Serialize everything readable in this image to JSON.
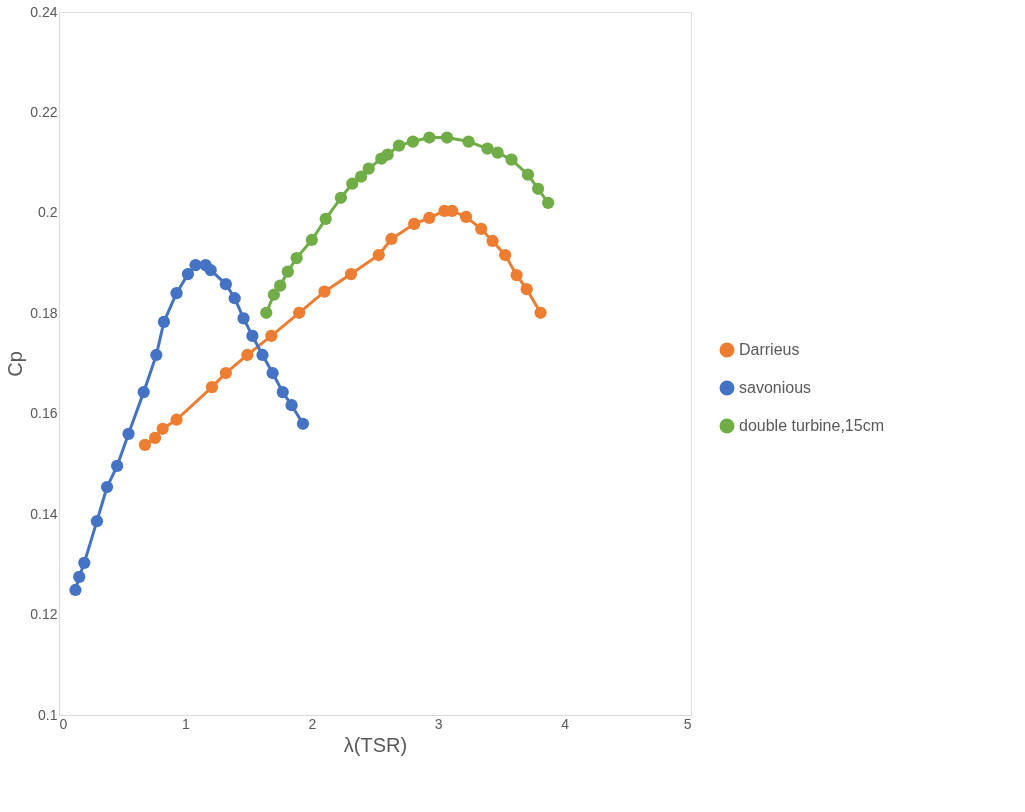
{
  "chart_data": {
    "type": "line",
    "xlabel": "λ(TSR)",
    "ylabel": "Cp",
    "xlim": [
      0,
      5
    ],
    "xticks": [
      0,
      1,
      2,
      3,
      4,
      5
    ],
    "ylim": [
      0.1,
      0.24
    ],
    "yticks": [
      0.1,
      0.12,
      0.14,
      0.16,
      0.18,
      0.2,
      0.22,
      0.24
    ],
    "grid": false,
    "legend": "right",
    "marker": "circle",
    "line_style": "solid",
    "series": [
      {
        "name": "Darrieus",
        "color": "#ed7d31",
        "x": [
          0.68,
          0.76,
          0.82,
          0.93,
          1.21,
          1.32,
          1.49,
          1.68,
          1.9,
          2.1,
          2.31,
          2.53,
          2.63,
          2.81,
          2.93,
          3.05,
          3.11,
          3.22,
          3.34,
          3.43,
          3.53,
          3.62,
          3.7,
          3.81
        ],
        "values": [
          0.1538,
          0.1552,
          0.157,
          0.1588,
          0.1653,
          0.1681,
          0.1717,
          0.1755,
          0.1801,
          0.1843,
          0.1878,
          0.1916,
          0.1948,
          0.1978,
          0.199,
          0.2004,
          0.2004,
          0.1992,
          0.1968,
          0.1944,
          0.1916,
          0.1876,
          0.1848,
          0.1801
        ]
      },
      {
        "name": "savonious",
        "color": "#4472c4",
        "x": [
          0.13,
          0.16,
          0.2,
          0.3,
          0.38,
          0.46,
          0.55,
          0.67,
          0.77,
          0.83,
          0.93,
          1.02,
          1.08,
          1.16,
          1.2,
          1.32,
          1.39,
          1.46,
          1.53,
          1.61,
          1.69,
          1.77,
          1.84,
          1.93
        ],
        "values": [
          0.1249,
          0.1275,
          0.1303,
          0.1386,
          0.1454,
          0.1496,
          0.156,
          0.1643,
          0.1717,
          0.1783,
          0.184,
          0.1878,
          0.1896,
          0.1896,
          0.1886,
          0.1858,
          0.183,
          0.179,
          0.1755,
          0.1717,
          0.1681,
          0.1643,
          0.1617,
          0.158
        ]
      },
      {
        "name": "double turbine,15cm",
        "color": "#70ad47",
        "x": [
          1.64,
          1.7,
          1.75,
          1.81,
          1.88,
          2.0,
          2.11,
          2.23,
          2.32,
          2.39,
          2.45,
          2.55,
          2.6,
          2.69,
          2.8,
          2.93,
          3.07,
          3.24,
          3.39,
          3.47,
          3.58,
          3.71,
          3.79,
          3.87
        ],
        "values": [
          0.1801,
          0.1837,
          0.1855,
          0.1883,
          0.191,
          0.1946,
          0.1988,
          0.203,
          0.2058,
          0.2072,
          0.2088,
          0.2108,
          0.2116,
          0.2134,
          0.2142,
          0.215,
          0.215,
          0.2142,
          0.2128,
          0.212,
          0.2106,
          0.2076,
          0.2048,
          0.202
        ]
      }
    ]
  }
}
